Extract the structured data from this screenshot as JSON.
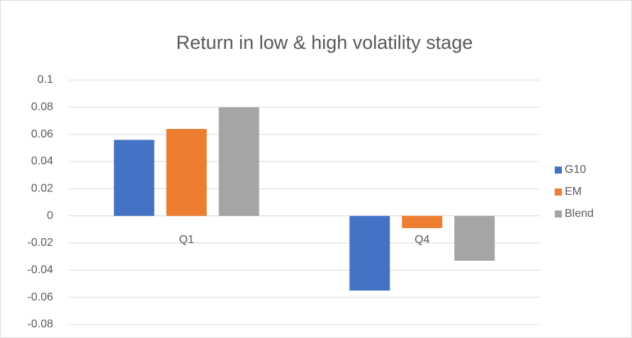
{
  "chart_data": {
    "type": "bar",
    "title": "Return in low & high volatility stage",
    "categories": [
      "Q1",
      "Q4"
    ],
    "series": [
      {
        "name": "G10",
        "color": "#4472c4",
        "values": [
          0.056,
          -0.055
        ]
      },
      {
        "name": "EM",
        "color": "#ed7d31",
        "values": [
          0.064,
          -0.009
        ]
      },
      {
        "name": "Blend",
        "color": "#a5a5a5",
        "values": [
          0.08,
          -0.033
        ]
      }
    ],
    "ylim": [
      -0.08,
      0.1
    ],
    "yticks": [
      -0.08,
      -0.06,
      -0.04,
      -0.02,
      0,
      0.02,
      0.04,
      0.06,
      0.08,
      0.1
    ],
    "grid": true,
    "legend": "right"
  }
}
